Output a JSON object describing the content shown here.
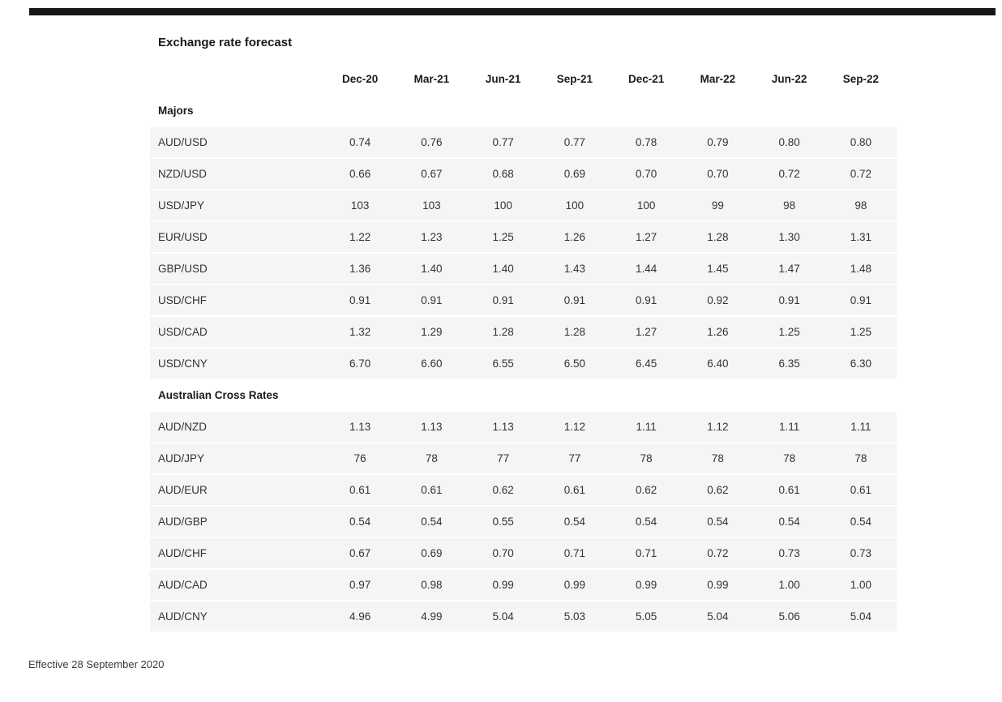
{
  "page": {
    "footer_note": "Effective 28 September 2020"
  },
  "chart_data": {
    "type": "table",
    "title": "Exchange rate forecast",
    "columns": [
      "Dec-20",
      "Mar-21",
      "Jun-21",
      "Sep-21",
      "Dec-21",
      "Mar-22",
      "Jun-22",
      "Sep-22"
    ],
    "sections": [
      {
        "label": "Majors",
        "rows": [
          {
            "pair": "AUD/USD",
            "values": [
              "0.74",
              "0.76",
              "0.77",
              "0.77",
              "0.78",
              "0.79",
              "0.80",
              "0.80"
            ]
          },
          {
            "pair": "NZD/USD",
            "values": [
              "0.66",
              "0.67",
              "0.68",
              "0.69",
              "0.70",
              "0.70",
              "0.72",
              "0.72"
            ]
          },
          {
            "pair": "USD/JPY",
            "values": [
              "103",
              "103",
              "100",
              "100",
              "100",
              "99",
              "98",
              "98"
            ]
          },
          {
            "pair": "EUR/USD",
            "values": [
              "1.22",
              "1.23",
              "1.25",
              "1.26",
              "1.27",
              "1.28",
              "1.30",
              "1.31"
            ]
          },
          {
            "pair": "GBP/USD",
            "values": [
              "1.36",
              "1.40",
              "1.40",
              "1.43",
              "1.44",
              "1.45",
              "1.47",
              "1.48"
            ]
          },
          {
            "pair": "USD/CHF",
            "values": [
              "0.91",
              "0.91",
              "0.91",
              "0.91",
              "0.91",
              "0.92",
              "0.91",
              "0.91"
            ]
          },
          {
            "pair": "USD/CAD",
            "values": [
              "1.32",
              "1.29",
              "1.28",
              "1.28",
              "1.27",
              "1.26",
              "1.25",
              "1.25"
            ]
          },
          {
            "pair": "USD/CNY",
            "values": [
              "6.70",
              "6.60",
              "6.55",
              "6.50",
              "6.45",
              "6.40",
              "6.35",
              "6.30"
            ]
          }
        ]
      },
      {
        "label": "Australian Cross Rates",
        "rows": [
          {
            "pair": "AUD/NZD",
            "values": [
              "1.13",
              "1.13",
              "1.13",
              "1.12",
              "1.11",
              "1.12",
              "1.11",
              "1.11"
            ]
          },
          {
            "pair": "AUD/JPY",
            "values": [
              "76",
              "78",
              "77",
              "77",
              "78",
              "78",
              "78",
              "78"
            ]
          },
          {
            "pair": "AUD/EUR",
            "values": [
              "0.61",
              "0.61",
              "0.62",
              "0.61",
              "0.62",
              "0.62",
              "0.61",
              "0.61"
            ]
          },
          {
            "pair": "AUD/GBP",
            "values": [
              "0.54",
              "0.54",
              "0.55",
              "0.54",
              "0.54",
              "0.54",
              "0.54",
              "0.54"
            ]
          },
          {
            "pair": "AUD/CHF",
            "values": [
              "0.67",
              "0.69",
              "0.70",
              "0.71",
              "0.71",
              "0.72",
              "0.73",
              "0.73"
            ]
          },
          {
            "pair": "AUD/CAD",
            "values": [
              "0.97",
              "0.98",
              "0.99",
              "0.99",
              "0.99",
              "0.99",
              "1.00",
              "1.00"
            ]
          },
          {
            "pair": "AUD/CNY",
            "values": [
              "4.96",
              "4.99",
              "5.04",
              "5.03",
              "5.05",
              "5.04",
              "5.06",
              "5.04"
            ]
          }
        ]
      }
    ]
  }
}
